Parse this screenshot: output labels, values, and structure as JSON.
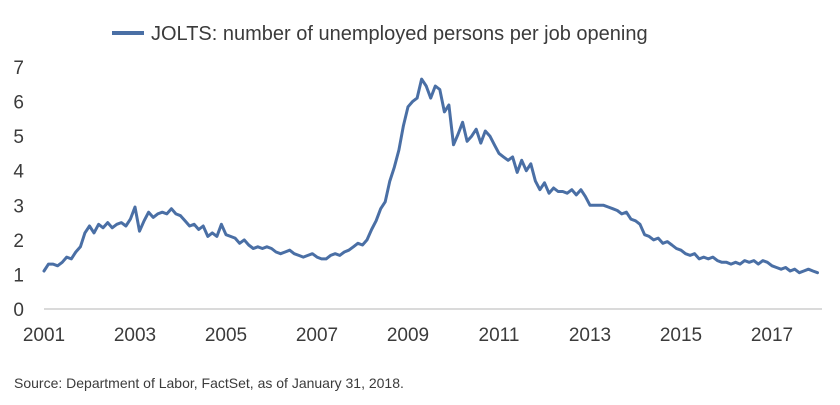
{
  "chart_data": {
    "type": "line",
    "title": "",
    "xlabel": "",
    "ylabel": "",
    "xlim": [
      2001.0,
      2018.1
    ],
    "ylim": [
      0,
      7
    ],
    "yticks": [
      0,
      1,
      2,
      3,
      4,
      5,
      6,
      7
    ],
    "xticks": [
      2001,
      2003,
      2005,
      2007,
      2009,
      2011,
      2013,
      2015,
      2017
    ],
    "grid": false,
    "legend": "top-center",
    "line_color": "#4a6fa5",
    "series": [
      {
        "name": "JOLTS:  number of unemployed persons per job opening",
        "x": [
          2001.0,
          2001.1,
          2001.2,
          2001.3,
          2001.4,
          2001.5,
          2001.6,
          2001.7,
          2001.8,
          2001.9,
          2002.0,
          2002.1,
          2002.2,
          2002.3,
          2002.4,
          2002.5,
          2002.6,
          2002.7,
          2002.8,
          2002.9,
          2003.0,
          2003.1,
          2003.2,
          2003.3,
          2003.4,
          2003.5,
          2003.6,
          2003.7,
          2003.8,
          2003.9,
          2004.0,
          2004.1,
          2004.2,
          2004.3,
          2004.4,
          2004.5,
          2004.6,
          2004.7,
          2004.8,
          2004.9,
          2005.0,
          2005.1,
          2005.2,
          2005.3,
          2005.4,
          2005.5,
          2005.6,
          2005.7,
          2005.8,
          2005.9,
          2006.0,
          2006.1,
          2006.2,
          2006.3,
          2006.4,
          2006.5,
          2006.6,
          2006.7,
          2006.8,
          2006.9,
          2007.0,
          2007.1,
          2007.2,
          2007.3,
          2007.4,
          2007.5,
          2007.6,
          2007.7,
          2007.8,
          2007.9,
          2008.0,
          2008.1,
          2008.2,
          2008.3,
          2008.4,
          2008.5,
          2008.6,
          2008.7,
          2008.8,
          2008.9,
          2009.0,
          2009.1,
          2009.2,
          2009.3,
          2009.4,
          2009.5,
          2009.6,
          2009.7,
          2009.8,
          2009.9,
          2010.0,
          2010.1,
          2010.2,
          2010.3,
          2010.4,
          2010.5,
          2010.6,
          2010.7,
          2010.8,
          2010.9,
          2011.0,
          2011.1,
          2011.2,
          2011.3,
          2011.4,
          2011.5,
          2011.6,
          2011.7,
          2011.8,
          2011.9,
          2012.0,
          2012.1,
          2012.2,
          2012.3,
          2012.4,
          2012.5,
          2012.6,
          2012.7,
          2012.8,
          2012.9,
          2013.0,
          2013.1,
          2013.2,
          2013.3,
          2013.4,
          2013.5,
          2013.6,
          2013.7,
          2013.8,
          2013.9,
          2014.0,
          2014.1,
          2014.2,
          2014.3,
          2014.4,
          2014.5,
          2014.6,
          2014.7,
          2014.8,
          2014.9,
          2015.0,
          2015.1,
          2015.2,
          2015.3,
          2015.4,
          2015.5,
          2015.6,
          2015.7,
          2015.8,
          2015.9,
          2016.0,
          2016.1,
          2016.2,
          2016.3,
          2016.4,
          2016.5,
          2016.6,
          2016.7,
          2016.8,
          2016.9,
          2017.0,
          2017.1,
          2017.2,
          2017.3,
          2017.4,
          2017.5,
          2017.6,
          2017.7,
          2017.8,
          2017.9,
          2018.0
        ],
        "values": [
          1.1,
          1.3,
          1.3,
          1.25,
          1.35,
          1.5,
          1.45,
          1.65,
          1.8,
          2.2,
          2.4,
          2.2,
          2.45,
          2.35,
          2.5,
          2.35,
          2.45,
          2.5,
          2.4,
          2.6,
          2.95,
          2.25,
          2.55,
          2.8,
          2.65,
          2.75,
          2.8,
          2.75,
          2.9,
          2.75,
          2.7,
          2.55,
          2.4,
          2.45,
          2.3,
          2.4,
          2.1,
          2.2,
          2.1,
          2.45,
          2.15,
          2.1,
          2.05,
          1.9,
          2.0,
          1.85,
          1.75,
          1.8,
          1.75,
          1.8,
          1.75,
          1.65,
          1.6,
          1.65,
          1.7,
          1.6,
          1.55,
          1.5,
          1.55,
          1.6,
          1.5,
          1.45,
          1.45,
          1.55,
          1.6,
          1.55,
          1.65,
          1.7,
          1.8,
          1.9,
          1.85,
          2.0,
          2.3,
          2.55,
          2.9,
          3.1,
          3.7,
          4.1,
          4.6,
          5.3,
          5.85,
          6.0,
          6.1,
          6.65,
          6.45,
          6.1,
          6.45,
          6.35,
          5.7,
          5.9,
          4.75,
          5.05,
          5.4,
          4.85,
          5.0,
          5.2,
          4.8,
          5.15,
          5.0,
          4.75,
          4.5,
          4.4,
          4.3,
          4.4,
          3.95,
          4.3,
          4.0,
          4.2,
          3.7,
          3.45,
          3.65,
          3.35,
          3.5,
          3.4,
          3.4,
          3.35,
          3.45,
          3.3,
          3.45,
          3.25,
          3.0,
          3.0,
          3.0,
          3.0,
          2.95,
          2.9,
          2.85,
          2.75,
          2.8,
          2.6,
          2.55,
          2.45,
          2.15,
          2.1,
          2.0,
          2.05,
          1.9,
          1.95,
          1.85,
          1.75,
          1.7,
          1.6,
          1.55,
          1.6,
          1.45,
          1.5,
          1.45,
          1.5,
          1.4,
          1.35,
          1.35,
          1.3,
          1.35,
          1.3,
          1.4,
          1.35,
          1.4,
          1.3,
          1.4,
          1.35,
          1.25,
          1.2,
          1.15,
          1.2,
          1.1,
          1.15,
          1.05,
          1.1,
          1.15,
          1.1,
          1.05
        ]
      }
    ]
  },
  "source_note": "Source: Department of Labor, FactSet, as of January 31, 2018."
}
